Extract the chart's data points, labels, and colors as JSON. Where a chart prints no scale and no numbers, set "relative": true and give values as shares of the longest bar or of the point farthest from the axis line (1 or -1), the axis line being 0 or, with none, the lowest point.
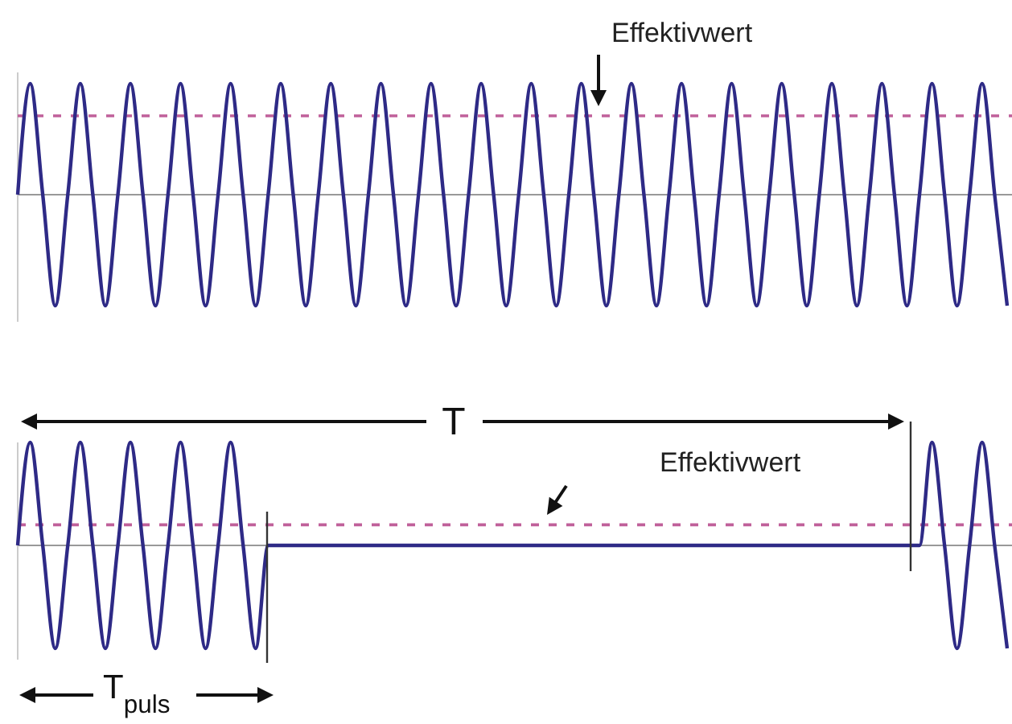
{
  "chart_data": [
    {
      "type": "line",
      "relative": true,
      "categories": [
        null,
        null,
        null,
        null,
        null,
        null,
        null,
        null,
        null,
        null,
        null,
        null,
        null,
        null,
        null,
        null,
        null,
        null,
        null,
        null,
        null,
        null,
        null,
        null,
        null,
        null,
        null,
        null,
        null,
        null,
        null,
        null,
        null,
        null,
        null,
        null,
        null,
        null,
        null,
        null,
        null,
        null,
        null,
        null,
        null,
        null,
        null,
        null,
        null,
        null,
        null,
        null,
        null,
        null,
        null,
        null,
        null,
        null,
        null,
        null,
        null,
        null,
        null,
        null,
        null,
        null,
        null,
        null,
        null,
        null,
        null,
        null,
        null,
        null,
        null,
        null,
        null,
        null,
        null,
        null
      ],
      "series": [
        {
          "color": "#2e2a86",
          "values": [
            0,
            1,
            0,
            -1,
            0,
            1,
            0,
            -1,
            0,
            1,
            0,
            -1,
            0,
            1,
            0,
            -1,
            0,
            1,
            0,
            -1,
            0,
            1,
            0,
            -1,
            0,
            1,
            0,
            -1,
            0,
            1,
            0,
            -1,
            0,
            1,
            0,
            -1,
            0,
            1,
            0,
            -1,
            0,
            1,
            0,
            -1,
            0,
            1,
            0,
            -1,
            0,
            1,
            0,
            -1,
            0,
            1,
            0,
            -1,
            0,
            1,
            0,
            -1,
            0,
            1,
            0,
            -1,
            0,
            1,
            0,
            -1,
            0,
            1,
            0,
            -1,
            0,
            1,
            0,
            -1,
            0,
            1,
            0,
            -1
          ]
        }
      ],
      "ref_lines": [
        {
          "axis": "y",
          "value": 0.71,
          "label": "Effektivwert",
          "color": "#c0609a",
          "line_style": "dashed"
        }
      ],
      "grid": false
    },
    {
      "type": "line",
      "relative": true,
      "categories": [
        null,
        null,
        null,
        null,
        null,
        null,
        null,
        null,
        null,
        null,
        null,
        null,
        null,
        null,
        null,
        null,
        null,
        null,
        null,
        null,
        null,
        null,
        null,
        null,
        null,
        null,
        null,
        null,
        null,
        null,
        null,
        null,
        null,
        null,
        null,
        null,
        null,
        null,
        null,
        null,
        null,
        null,
        null,
        null,
        null,
        null,
        null,
        null,
        null,
        null,
        null,
        null,
        null,
        null,
        null,
        null,
        null,
        null,
        null,
        null,
        null,
        null,
        null,
        null,
        null,
        null,
        null,
        null,
        null,
        null,
        null,
        null,
        null,
        null,
        null,
        null,
        null,
        null,
        null,
        null
      ],
      "series": [
        {
          "color": "#2e2a86",
          "values": [
            0,
            1,
            0,
            -1,
            0,
            1,
            0,
            -1,
            0,
            1,
            0,
            -1,
            0,
            1,
            0,
            -1,
            0,
            1,
            0,
            -1,
            0,
            0,
            0,
            0,
            0,
            0,
            0,
            0,
            0,
            0,
            0,
            0,
            0,
            0,
            0,
            0,
            0,
            0,
            0,
            0,
            0,
            0,
            0,
            0,
            0,
            0,
            0,
            0,
            0,
            0,
            0,
            0,
            0,
            0,
            0,
            0,
            0,
            0,
            0,
            0,
            0,
            0,
            0,
            0,
            0,
            0,
            0,
            0,
            0,
            0,
            0,
            0,
            0,
            1,
            0,
            -1,
            0,
            1,
            0,
            -1
          ]
        }
      ],
      "ref_lines": [
        {
          "axis": "y",
          "value": 0.2,
          "label": "Effektivwert",
          "color": "#c0609a",
          "line_style": "dashed"
        }
      ],
      "annotations": [
        "T",
        "T$_{puls}$"
      ],
      "grid": false
    }
  ]
}
